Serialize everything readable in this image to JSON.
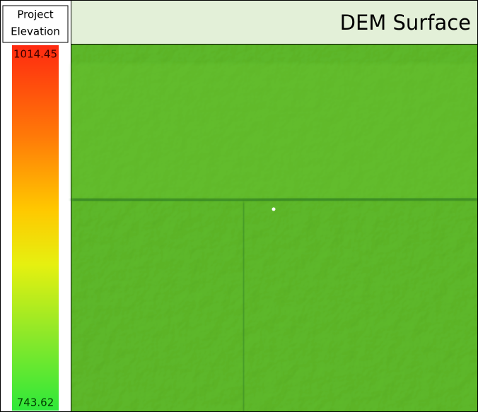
{
  "legend": {
    "title_lines": [
      "Project",
      "Elevation"
    ],
    "max": 1014.45,
    "min": 743.62
  },
  "map": {
    "title": "DEM Surface"
  }
}
